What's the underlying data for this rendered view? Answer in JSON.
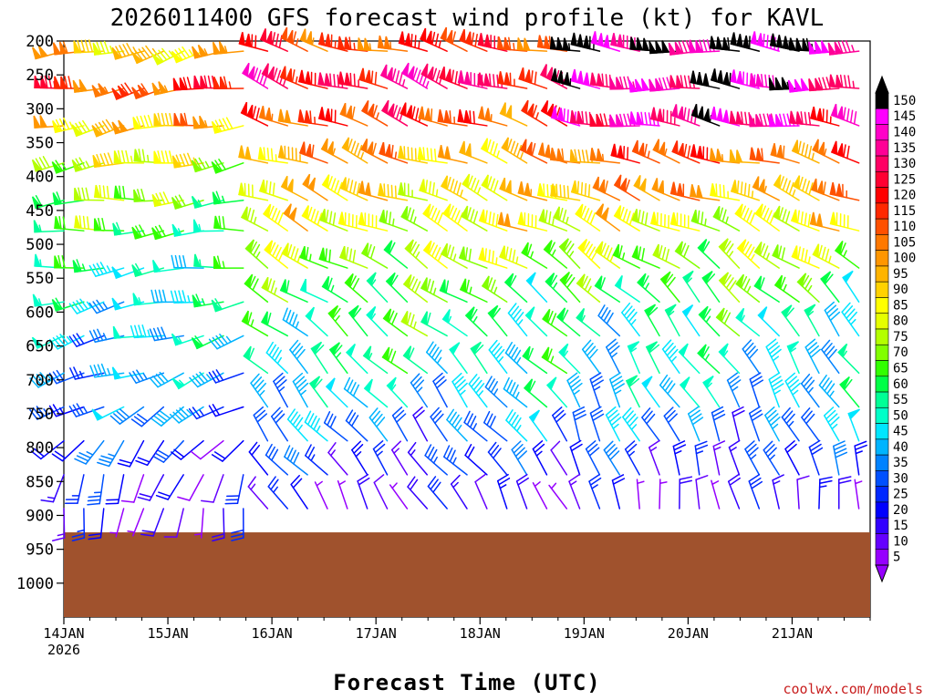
{
  "chart_data": {
    "type": "wind-barb-time-height",
    "title": "2026011400 GFS forecast wind profile (kt) for KAVL",
    "xlabel": "Forecast Time (UTC)",
    "credit": "coolwx.com/models",
    "x_ticks": [
      {
        "hour": 0,
        "label": "14JAN",
        "sub": "2026"
      },
      {
        "hour": 24,
        "label": "15JAN",
        "sub": ""
      },
      {
        "hour": 48,
        "label": "16JAN",
        "sub": ""
      },
      {
        "hour": 72,
        "label": "17JAN",
        "sub": ""
      },
      {
        "hour": 96,
        "label": "18JAN",
        "sub": ""
      },
      {
        "hour": 120,
        "label": "19JAN",
        "sub": ""
      },
      {
        "hour": 144,
        "label": "20JAN",
        "sub": ""
      },
      {
        "hour": 168,
        "label": "21JAN",
        "sub": ""
      }
    ],
    "x_range_hours": [
      0,
      186
    ],
    "y_ticks": [
      200,
      250,
      300,
      350,
      400,
      450,
      500,
      550,
      600,
      650,
      700,
      750,
      800,
      850,
      900,
      950,
      1000
    ],
    "y_range_hpa": [
      200,
      1050
    ],
    "levels_hpa": [
      215,
      270,
      325,
      380,
      435,
      480,
      535,
      585,
      635,
      690,
      740,
      790,
      840,
      890
    ],
    "colorbar": {
      "unit": "kt",
      "labels": [
        "150",
        "145",
        "140",
        "135",
        "130",
        "125",
        "120",
        "115",
        "110",
        "105",
        "100",
        "95",
        "90",
        "85",
        "80",
        "75",
        "70",
        "65",
        "60",
        "55",
        "50",
        "45",
        "40",
        "35",
        "30",
        "25",
        "20",
        "15",
        "10",
        "5"
      ],
      "colors": [
        "#000000",
        "#ff00ff",
        "#ff00c8",
        "#ff0096",
        "#ff0064",
        "#ff0032",
        "#ff0000",
        "#ff2800",
        "#ff5000",
        "#ff7800",
        "#ff9600",
        "#ffb400",
        "#ffd200",
        "#ffff00",
        "#e6ff00",
        "#b4ff00",
        "#82ff00",
        "#32ff00",
        "#00ff46",
        "#00ff96",
        "#00ffc8",
        "#00e6ff",
        "#00b4ff",
        "#0082ff",
        "#0050ff",
        "#0028ff",
        "#0000ff",
        "#3200ff",
        "#6400ff",
        "#9600ff"
      ]
    },
    "terrain_color": "#a0522d",
    "terrain_surface_hpa": 925,
    "segments": [
      {
        "start": 0,
        "end": 45,
        "step": 4.6,
        "speeds": [
          95,
          115,
          95,
          80,
          70,
          65,
          55,
          50,
          45,
          40,
          35,
          25,
          20,
          15
        ],
        "directions": [
          255,
          260,
          260,
          262,
          265,
          265,
          262,
          258,
          255,
          250,
          240,
          220,
          200,
          190
        ]
      },
      {
        "start": 47,
        "end": 117,
        "step": 4.6,
        "speeds": [
          115,
          130,
          115,
          100,
          90,
          85,
          75,
          65,
          60,
          55,
          45,
          35,
          25,
          15
        ],
        "directions": [
          285,
          290,
          290,
          290,
          292,
          295,
          300,
          305,
          310,
          315,
          320,
          320,
          320,
          330
        ]
      },
      {
        "start": 119,
        "end": 186,
        "step": 4.6,
        "speeds": [
          150,
          145,
          140,
          110,
          100,
          85,
          75,
          65,
          55,
          50,
          45,
          35,
          25,
          15
        ],
        "directions": [
          275,
          275,
          280,
          285,
          290,
          295,
          305,
          315,
          320,
          325,
          330,
          335,
          340,
          350
        ]
      }
    ]
  }
}
